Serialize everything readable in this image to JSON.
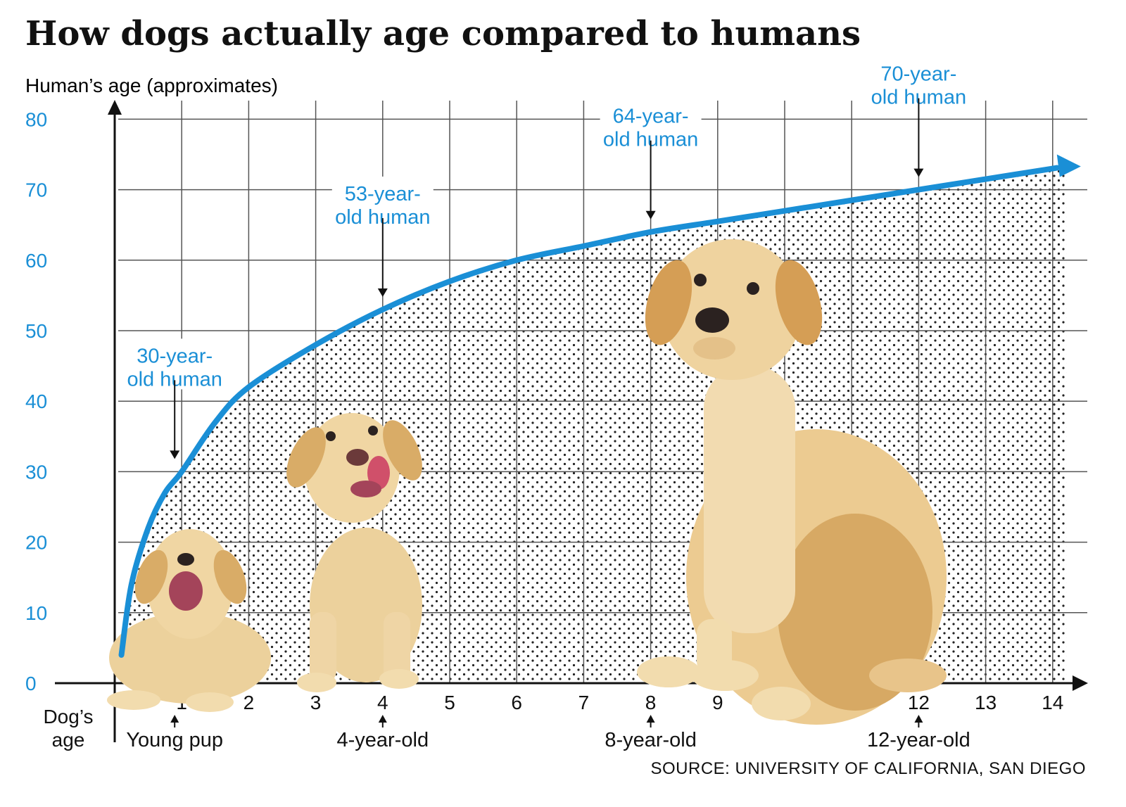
{
  "chart_data": {
    "type": "line",
    "title": "How dogs actually age compared to humans",
    "ylabel": "Human’s age (approximates)",
    "xlabel_lines": [
      "Dog’s",
      "age"
    ],
    "xlim": [
      0,
      14
    ],
    "ylim": [
      0,
      80
    ],
    "x_ticks": [
      1,
      2,
      3,
      4,
      5,
      6,
      7,
      8,
      9,
      10,
      11,
      12,
      13,
      14
    ],
    "x_tick_labels": [
      "1",
      "2",
      "3",
      "4",
      "5",
      "6",
      "7",
      "8",
      "9",
      "",
      "11",
      "12",
      "13",
      "14"
    ],
    "y_ticks": [
      0,
      10,
      20,
      30,
      40,
      50,
      60,
      70,
      80
    ],
    "y_tick_labels": [
      "0",
      "10",
      "20",
      "30",
      "40",
      "50",
      "60",
      "70",
      "80"
    ],
    "grid": true,
    "series": [
      {
        "x": [
          0.1,
          0.25,
          0.5,
          0.75,
          1,
          1.5,
          2,
          3,
          4,
          5,
          6,
          7,
          8,
          9,
          10,
          11,
          12,
          13,
          14
        ],
        "y": [
          4,
          14,
          22,
          27,
          30,
          37,
          42,
          48,
          53,
          57,
          60,
          62,
          64,
          65.5,
          67,
          68.5,
          70,
          71.5,
          73
        ]
      }
    ],
    "annotations": [
      {
        "x": 1,
        "lines": [
          "30-year-",
          "old human"
        ],
        "human_age": 30
      },
      {
        "x": 4,
        "lines": [
          "53-year-",
          "old human"
        ],
        "human_age": 53
      },
      {
        "x": 8,
        "lines": [
          "64-year-",
          "old human"
        ],
        "human_age": 64
      },
      {
        "x": 12,
        "lines": [
          "70-year-",
          "old human"
        ],
        "human_age": 70
      }
    ],
    "dog_labels": [
      {
        "x": 1,
        "label": "Young pup"
      },
      {
        "x": 4,
        "label": "4-year-old"
      },
      {
        "x": 8,
        "label": "8-year-old"
      },
      {
        "x": 12,
        "label": "12-year-old"
      }
    ],
    "source": "SOURCE: UNIVERSITY OF CALIFORNIA, SAN DIEGO",
    "colors": {
      "accent": "#1a8fd6",
      "grid": "#555555",
      "axis": "#111111",
      "text": "#111111",
      "dots": "#222222",
      "fur": "#e9c88f",
      "fur_shade": "#cf9f5a",
      "nose": "#2b2220"
    }
  }
}
